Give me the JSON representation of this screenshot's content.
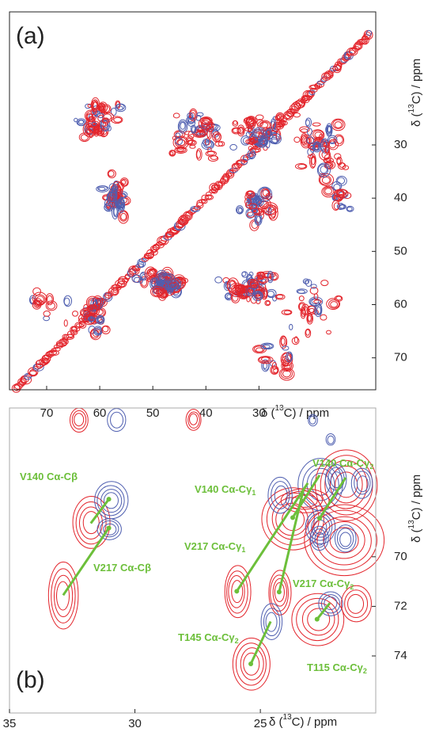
{
  "chart_data": [
    {
      "type": "contour",
      "panel_label": "(a)",
      "xlabel": {
        "pre": "δ (",
        "sup": "13",
        "post": "C) / ppm"
      },
      "ylabel": {
        "pre": "δ (",
        "sup": "13",
        "post": "C) / ppm"
      },
      "xlim": [
        77,
        8
      ],
      "ylim": [
        5,
        76
      ],
      "xticks": [
        70,
        60,
        50,
        40,
        30
      ],
      "yticks": [
        30,
        40,
        50,
        60,
        70
      ],
      "colors": [
        "#e3242b",
        "#4f5fb0"
      ]
    },
    {
      "type": "contour",
      "panel_label": "(b)",
      "xlabel": {
        "pre": "δ (",
        "sup": "13",
        "post": "C) / ppm"
      },
      "ylabel": {
        "pre": "δ (",
        "sup": "13",
        "post": "C) / ppm"
      },
      "xlim": [
        35,
        20.4
      ],
      "ylim": [
        64,
        76.3
      ],
      "xticks": [
        35,
        30,
        25
      ],
      "yticks": [
        70,
        72,
        74
      ],
      "colors": [
        "#e3242b",
        "#4f5fb0"
      ],
      "annotation_color": "#6cbf3a",
      "annotations": [
        {
          "text": "V140 Cα-Cβ",
          "sub": null,
          "x": [
            31.04,
            31.76
          ],
          "y": [
            67.68,
            68.65
          ]
        },
        {
          "text": "V217 Cα-Cβ",
          "sub": null,
          "x": [
            31.04,
            32.86
          ],
          "y": [
            68.84,
            71.55
          ]
        },
        {
          "text": "V140 Cα-Cγ",
          "sub": "1",
          "x": [
            23.71,
            22.64
          ],
          "y": [
            68.42,
            66.71
          ]
        },
        {
          "text": "V140 Cα-Cγ",
          "sub": "2",
          "x": [
            22.64,
            21.6
          ],
          "y": [
            68.45,
            66.81
          ]
        },
        {
          "text": "V217 Cα-Cγ",
          "sub": "1",
          "x": [
            25.94,
            23.11
          ],
          "y": [
            71.39,
            67.03
          ]
        },
        {
          "text": "V217 Cα-Cγ",
          "sub": "2",
          "x": [
            24.25,
            23.27
          ],
          "y": [
            71.42,
            67.23
          ]
        },
        {
          "text": "T145 Cα-Cγ",
          "sub": "2",
          "x": [
            25.38,
            24.59
          ],
          "y": [
            74.32,
            72.61
          ]
        },
        {
          "text": "T115 Cα-Cγ",
          "sub": "2",
          "x": [
            22.74,
            22.23
          ],
          "y": [
            72.52,
            71.87
          ]
        }
      ]
    }
  ]
}
